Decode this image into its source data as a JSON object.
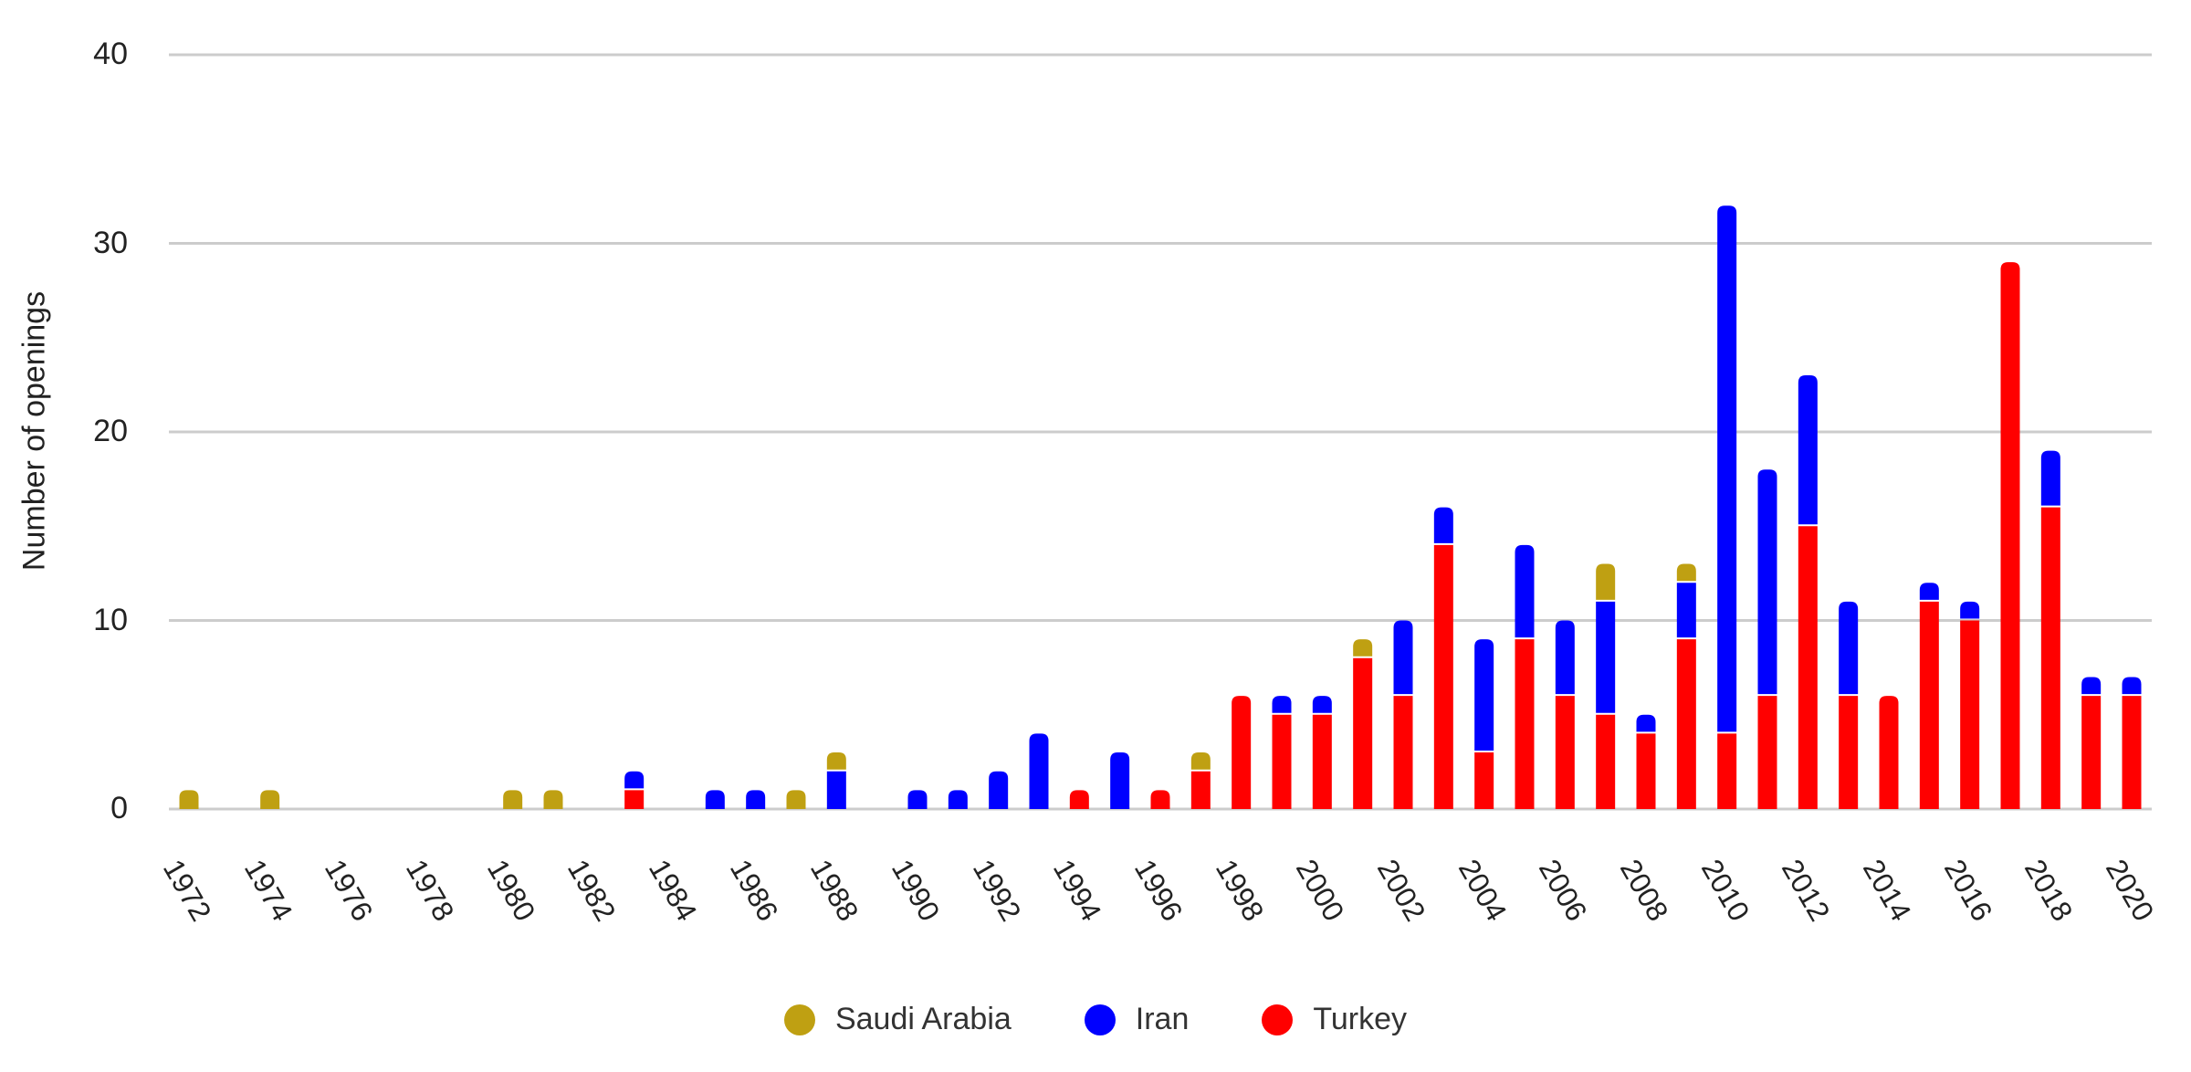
{
  "chart_data": {
    "type": "bar",
    "stacked": true,
    "title": "",
    "xlabel": "",
    "ylabel": "Number of openings",
    "ylim": [
      0,
      40
    ],
    "yticks": [
      0,
      10,
      20,
      30,
      40
    ],
    "grid": true,
    "legend_position": "bottom",
    "x_tick_labels": [
      "1972",
      "1974",
      "1976",
      "1978",
      "1980",
      "1982",
      "1984",
      "1986",
      "1988",
      "1990",
      "1992",
      "1994",
      "1996",
      "1998",
      "2000",
      "2002",
      "2004",
      "2006",
      "2008",
      "2010",
      "2012",
      "2014",
      "2016",
      "2018",
      "2020"
    ],
    "categories": [
      "1972",
      "1973",
      "1974",
      "1975",
      "1976",
      "1977",
      "1978",
      "1979",
      "1980",
      "1981",
      "1982",
      "1983",
      "1984",
      "1985",
      "1986",
      "1987",
      "1988",
      "1989",
      "1990",
      "1991",
      "1992",
      "1993",
      "1994",
      "1995",
      "1996",
      "1997",
      "1998",
      "1999",
      "2000",
      "2001",
      "2002",
      "2003",
      "2004",
      "2005",
      "2006",
      "2007",
      "2008",
      "2009",
      "2010",
      "2011",
      "2012",
      "2013",
      "2014",
      "2015",
      "2016",
      "2017",
      "2018",
      "2019",
      "2020"
    ],
    "series": [
      {
        "name": "Turkey",
        "color": "#ff0000",
        "values": [
          0,
          0,
          0,
          0,
          0,
          0,
          0,
          0,
          0,
          0,
          0,
          1,
          0,
          0,
          0,
          0,
          0,
          0,
          0,
          0,
          0,
          0,
          1,
          0,
          1,
          2,
          6,
          5,
          5,
          8,
          6,
          14,
          3,
          9,
          6,
          5,
          4,
          9,
          4,
          6,
          15,
          6,
          6,
          11,
          10,
          29,
          16,
          6,
          6
        ]
      },
      {
        "name": "Iran",
        "color": "#0000ff",
        "values": [
          0,
          0,
          0,
          0,
          0,
          0,
          0,
          0,
          0,
          0,
          0,
          1,
          0,
          1,
          1,
          0,
          2,
          0,
          1,
          1,
          2,
          4,
          0,
          3,
          0,
          0,
          0,
          1,
          1,
          0,
          4,
          2,
          6,
          5,
          4,
          6,
          1,
          3,
          28,
          12,
          8,
          5,
          0,
          1,
          1,
          0,
          3,
          1,
          1
        ]
      },
      {
        "name": "Saudi Arabia",
        "color": "#bfa012",
        "values": [
          1,
          0,
          1,
          0,
          0,
          0,
          0,
          0,
          1,
          1,
          0,
          0,
          0,
          0,
          0,
          1,
          1,
          0,
          0,
          0,
          0,
          0,
          0,
          0,
          0,
          1,
          0,
          0,
          0,
          1,
          0,
          0,
          0,
          0,
          0,
          2,
          0,
          1,
          0,
          0,
          0,
          0,
          0,
          0,
          0,
          0,
          0,
          0,
          0
        ]
      }
    ]
  },
  "legend": {
    "items": [
      {
        "label": "Saudi Arabia",
        "color": "#bfa012"
      },
      {
        "label": "Iran",
        "color": "#0000ff"
      },
      {
        "label": "Turkey",
        "color": "#ff0000"
      }
    ]
  },
  "axis": {
    "ylabel": "Number of openings",
    "yticks": [
      "0",
      "10",
      "20",
      "30",
      "40"
    ]
  }
}
